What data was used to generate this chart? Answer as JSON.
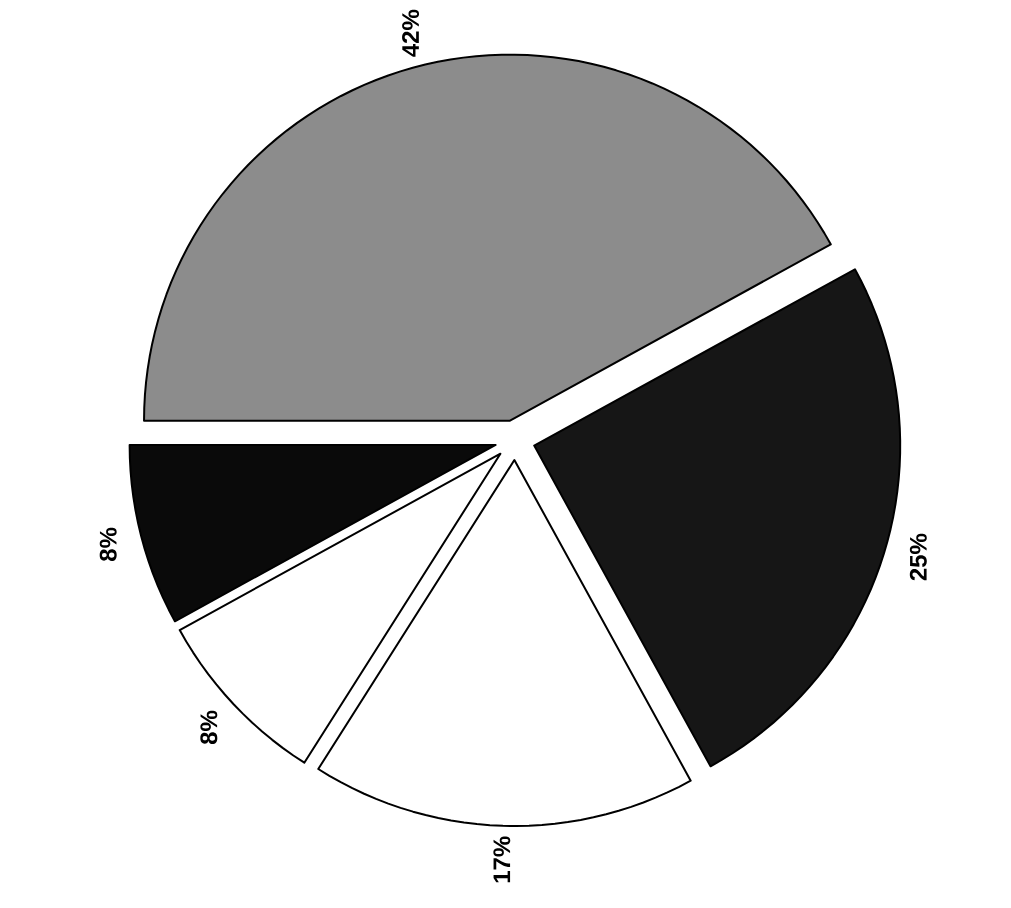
{
  "chart_data": {
    "type": "pie",
    "categories": [
      null,
      null,
      null,
      null,
      null
    ],
    "values": [
      42,
      25,
      17,
      8,
      8
    ],
    "colors": [
      "#8c8c8c",
      "#161616",
      "#ffffff",
      "#ffffff",
      "#0a0a0a"
    ],
    "value_labels": [
      "42%",
      "25%",
      "17%",
      "8%",
      "8%"
    ]
  }
}
